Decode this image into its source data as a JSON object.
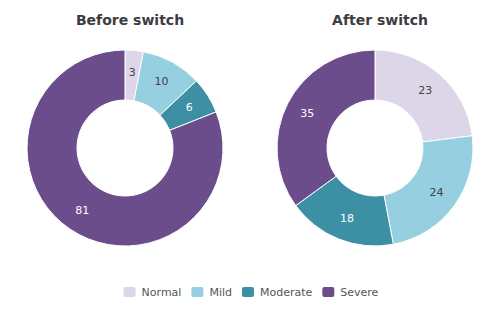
{
  "chart_data": [
    {
      "type": "pie",
      "title": "Before switch",
      "categories": [
        "Normal",
        "Mild",
        "Moderate",
        "Severe"
      ],
      "values": [
        3,
        10,
        6,
        81
      ],
      "colors": [
        "#ddd5e8",
        "#95cfe0",
        "#3d8fa3",
        "#6b4d8c"
      ],
      "data_labels": true,
      "legend": "bottom"
    },
    {
      "type": "pie",
      "title": "After switch",
      "categories": [
        "Normal",
        "Mild",
        "Moderate",
        "Severe"
      ],
      "values": [
        23,
        24,
        18,
        35
      ],
      "colors": [
        "#ddd5e8",
        "#95cfe0",
        "#3d8fa3",
        "#6b4d8c"
      ],
      "data_labels": true,
      "legend": "bottom"
    }
  ]
}
